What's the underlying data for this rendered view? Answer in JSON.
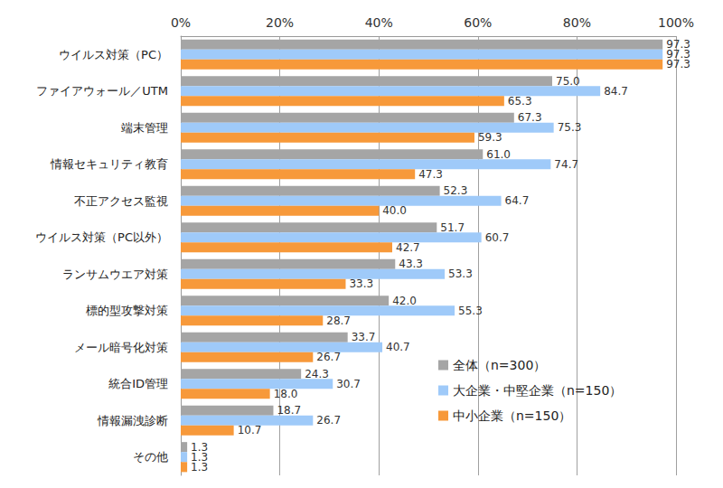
{
  "chart_data": {
    "type": "bar",
    "orientation": "horizontal",
    "grid": true,
    "data_labels": true,
    "legend": "lower right",
    "categories": [
      "ウイルス対策（PC）",
      "ファイアウォール／UTM",
      "端末管理",
      "情報セキュリティ教育",
      "不正アクセス監視",
      "ウイルス対策（PC以外）",
      "ランサムウエア対策",
      "標的型攻撃対策",
      "メール暗号化対策",
      "統合ID管理",
      "情報漏洩診断",
      "その他"
    ],
    "xlim": [
      0,
      100
    ],
    "xticks": [
      {
        "value": 0,
        "label": "0%"
      },
      {
        "value": 20,
        "label": "20%"
      },
      {
        "value": 40,
        "label": "40%"
      },
      {
        "value": 60,
        "label": "60%"
      },
      {
        "value": 80,
        "label": "80%"
      },
      {
        "value": 100,
        "label": "100%"
      }
    ],
    "series": [
      {
        "name": "全体（n=300）",
        "color": "#a5a5a5",
        "values": [
          97.3,
          75.0,
          67.3,
          61.0,
          52.3,
          51.7,
          43.3,
          42.0,
          33.7,
          24.3,
          18.7,
          1.3
        ],
        "value_labels": [
          "97.3",
          "75.0",
          "67.3",
          "61.0",
          "52.3",
          "51.7",
          "43.3",
          "42.0",
          "33.7",
          "24.3",
          "18.7",
          "1.3"
        ]
      },
      {
        "name": "大企業・中堅企業（n=150）",
        "color": "#9fcaf9",
        "values": [
          97.3,
          84.7,
          75.3,
          74.7,
          64.7,
          60.7,
          53.3,
          55.3,
          40.7,
          30.7,
          26.7,
          1.3
        ],
        "value_labels": [
          "97.3",
          "84.7",
          "75.3",
          "74.7",
          "64.7",
          "60.7",
          "53.3",
          "55.3",
          "40.7",
          "30.7",
          "26.7",
          "1.3"
        ]
      },
      {
        "name": "中小企業（n=150）",
        "color": "#f7993a",
        "values": [
          97.3,
          65.3,
          59.3,
          47.3,
          40.0,
          42.7,
          33.3,
          28.7,
          26.7,
          18.0,
          10.7,
          1.3
        ],
        "value_labels": [
          "97.3",
          "65.3",
          "59.3",
          "47.3",
          "40.0",
          "42.7",
          "33.3",
          "28.7",
          "26.7",
          "18.0",
          "10.7",
          "1.3"
        ]
      }
    ]
  }
}
